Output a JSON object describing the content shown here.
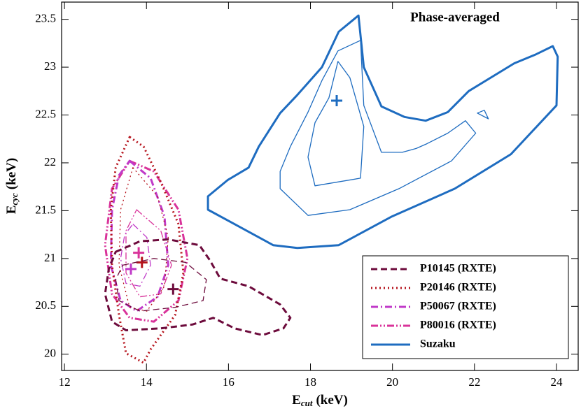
{
  "chart_data": {
    "type": "contour",
    "title": "Phase-averaged",
    "xlabel": {
      "main": "E",
      "sub": "cut",
      "unit": "(keV)"
    },
    "ylabel": {
      "main": "E",
      "sub": "cyc",
      "unit": "(keV)"
    },
    "xlim": [
      11.93,
      24.53
    ],
    "ylim": [
      19.83,
      23.68
    ],
    "xticks": [
      12,
      14,
      16,
      18,
      20,
      22,
      24
    ],
    "yticks": [
      20,
      20.5,
      21,
      21.5,
      22,
      22.5,
      23,
      23.5
    ],
    "legend": "lower right",
    "series": [
      {
        "name": "P10145 (RXTE)",
        "color": "#6d0b3c",
        "dash": "dashed",
        "contours": [
          {
            "x": [
              13.25,
              13.84,
              14.53,
              15.29,
              15.55,
              15.8,
              16.49,
              17.26,
              17.51,
              17.34,
              16.83,
              16.15,
              15.63,
              15.12,
              14.35,
              13.5,
              13.16,
              12.99,
              13.08
            ],
            "y": [
              21.07,
              21.18,
              21.2,
              21.14,
              20.98,
              20.79,
              20.71,
              20.52,
              20.38,
              20.27,
              20.2,
              20.27,
              20.38,
              20.31,
              20.27,
              20.25,
              20.34,
              20.63,
              20.89
            ]
          },
          {
            "x": [
              13.42,
              14.18,
              14.95,
              15.46,
              15.38,
              14.7,
              13.84,
              13.33,
              13.25
            ],
            "y": [
              20.93,
              21.0,
              20.96,
              20.78,
              20.56,
              20.49,
              20.45,
              20.56,
              20.78
            ]
          }
        ],
        "best": {
          "x": 14.65,
          "y": 20.68
        }
      },
      {
        "name": "P20146 (RXTE)",
        "color": "#b5121b",
        "dash": "dotted",
        "contours": [
          {
            "x": [
              13.59,
              13.93,
              14.35,
              14.78,
              14.9,
              14.7,
              14.1,
              13.93,
              13.5,
              13.33,
              13.16,
              13.13,
              13.25
            ],
            "y": [
              22.27,
              22.17,
              21.8,
              21.36,
              20.85,
              20.41,
              20.05,
              19.91,
              20.01,
              20.41,
              20.93,
              21.51,
              21.95
            ]
          },
          {
            "x": [
              13.67,
              14.27,
              14.53,
              14.44,
              14.01,
              13.59,
              13.33,
              13.37
            ],
            "y": [
              21.95,
              21.65,
              21.22,
              20.71,
              20.45,
              20.49,
              20.93,
              21.51
            ]
          }
        ],
        "best": {
          "x": 13.89,
          "y": 20.96
        }
      },
      {
        "name": "P50067 (RXTE)",
        "color": "#c03ac8",
        "dash": "dashdot",
        "contours": [
          {
            "x": [
              13.59,
              14.1,
              14.44,
              14.53,
              14.27,
              13.76,
              13.37,
              13.13,
              13.16,
              13.33
            ],
            "y": [
              22.02,
              21.84,
              21.44,
              20.93,
              20.6,
              20.45,
              20.56,
              20.93,
              21.51,
              21.87
            ]
          },
          {
            "x": [
              13.67,
              14.01,
              14.1,
              13.84,
              13.5,
              13.37,
              13.47
            ],
            "y": [
              21.36,
              21.22,
              20.93,
              20.71,
              20.74,
              21.0,
              21.25
            ]
          }
        ],
        "best": {
          "x": 13.62,
          "y": 20.89
        }
      },
      {
        "name": "P80016 (RXTE)",
        "color": "#d9339a",
        "dash": "dashdotdot",
        "contours": [
          {
            "x": [
              13.59,
              14.18,
              14.78,
              15.0,
              14.78,
              14.18,
              13.59,
              13.16,
              12.99,
              13.16
            ],
            "y": [
              22.02,
              21.91,
              21.51,
              21.0,
              20.56,
              20.34,
              20.38,
              20.63,
              21.14,
              21.73
            ]
          },
          {
            "x": [
              13.76,
              14.35,
              14.61,
              14.35,
              13.84,
              13.5,
              13.5
            ],
            "y": [
              21.51,
              21.29,
              20.93,
              20.63,
              20.6,
              20.85,
              21.29
            ]
          }
        ],
        "best": {
          "x": 13.81,
          "y": 21.06
        }
      },
      {
        "name": "Suzaku",
        "color": "#1e6cc0",
        "dash": "solid",
        "contours": [
          {
            "x": [
              15.5,
              15.5,
              16.06,
              17.09,
              17.68,
              18.69,
              19.99,
              21.52,
              22.89,
              24.0,
              24.03,
              23.91,
              23.48,
              22.97,
              21.86,
              21.35,
              20.81,
              20.29,
              19.73,
              19.3,
              19.17,
              18.69,
              18.28,
              17.68,
              17.26,
              16.74,
              16.49,
              15.98
            ],
            "y": [
              21.65,
              21.51,
              21.38,
              21.14,
              21.11,
              21.14,
              21.44,
              21.73,
              22.09,
              22.6,
              23.11,
              23.22,
              23.13,
              23.04,
              22.75,
              22.53,
              22.44,
              22.48,
              22.59,
              23.0,
              23.54,
              23.37,
              23.0,
              22.71,
              22.52,
              22.17,
              21.95,
              21.82
            ]
          },
          {
            "x": [
              17.26,
              17.94,
              18.96,
              20.16,
              21.44,
              22.03,
              21.78,
              21.35,
              20.84,
              20.58,
              20.24,
              19.73,
              19.3,
              19.22,
              18.67,
              18.28,
              17.94,
              17.51,
              17.26
            ],
            "y": [
              21.73,
              21.45,
              21.51,
              21.73,
              22.02,
              22.31,
              22.44,
              22.31,
              22.2,
              22.15,
              22.11,
              22.11,
              22.6,
              23.28,
              23.17,
              22.86,
              22.53,
              22.17,
              21.91
            ]
          },
          {
            "x": [
              22.07,
              22.34,
              22.24
            ],
            "y": [
              22.52,
              22.46,
              22.55
            ]
          },
          {
            "x": [
              18.11,
              19.22,
              19.3,
              18.96,
              18.67,
              18.45,
              18.11,
              17.94
            ],
            "y": [
              21.76,
              21.84,
              22.38,
              22.89,
              23.06,
              22.68,
              22.42,
              22.06
            ]
          }
        ],
        "best": {
          "x": 18.64,
          "y": 22.65
        }
      }
    ]
  }
}
